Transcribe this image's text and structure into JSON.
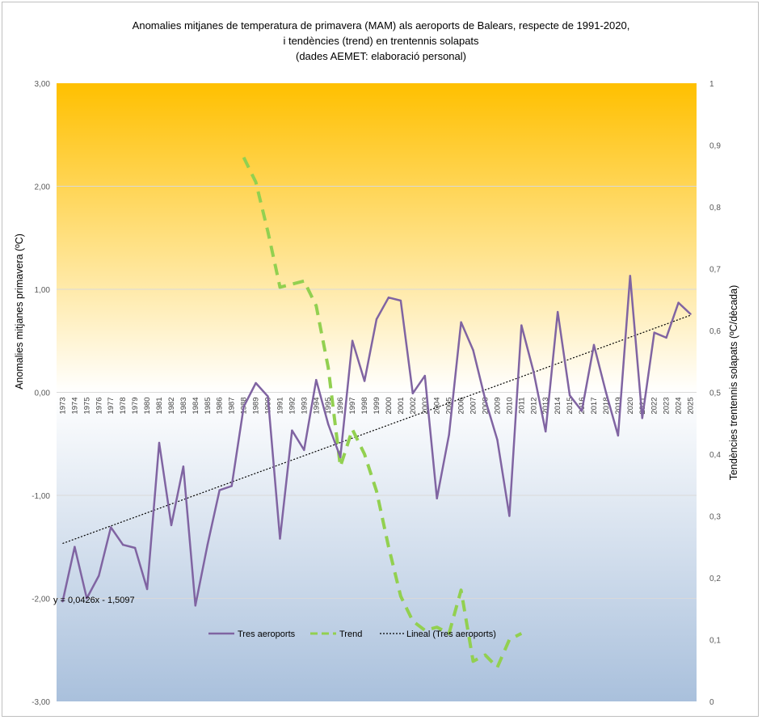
{
  "title": {
    "line1": "Anomalies mitjanes de temperatura de primavera (MAM) als aeroports de Balears, respecte de 1991-2020,",
    "line2": "i tendències (trend) en trentennis solapats",
    "line3": "(dades AEMET: elaboració personal)"
  },
  "colors": {
    "anomaly_line": "#8064a2",
    "trend_line": "#92d050",
    "linear_fit": "#000000",
    "bg_top": "#ffc000",
    "bg_mid": "#ffffff",
    "bg_bottom": "#a9c0dc"
  },
  "chart_data": {
    "type": "line",
    "title": "Anomalies mitjanes de temperatura de primavera (MAM) als aeroports de Balears, respecte de 1991-2020, i tendències (trend) en trentennis solapats (dades AEMET: elaboració personal)",
    "ylabel": "Anomalies mitjanes primavera (ºC)",
    "y2label": "Tendències trentennis solapats (ºC/dècada)",
    "ylim": [
      -3,
      3
    ],
    "y2lim": [
      0,
      1
    ],
    "yticks": [
      "3,00",
      "2,00",
      "1,00",
      "0,00",
      "-1,00",
      "-2,00",
      "-3,00"
    ],
    "y2ticks": [
      "1",
      "0,9",
      "0,8",
      "0,7",
      "0,6",
      "0,5",
      "0,4",
      "0,3",
      "0,2",
      "0,1",
      "0"
    ],
    "categories": [
      "1973",
      "1974",
      "1975",
      "1976",
      "1977",
      "1978",
      "1979",
      "1980",
      "1981",
      "1982",
      "1983",
      "1984",
      "1985",
      "1986",
      "1987",
      "1988",
      "1989",
      "1990",
      "1991",
      "1992",
      "1993",
      "1994",
      "1995",
      "1996",
      "1997",
      "1998",
      "1999",
      "2000",
      "2001",
      "2002",
      "2003",
      "2004",
      "2005",
      "2006",
      "2007",
      "2008",
      "2009",
      "2010",
      "2011",
      "2012",
      "2013",
      "2014",
      "2015",
      "2016",
      "2017",
      "2018",
      "2019",
      "2020",
      "2021",
      "2022",
      "2023",
      "2024",
      "2025"
    ],
    "series": [
      {
        "name": "Tres aeroports",
        "axis": "left",
        "values": [
          -2.03,
          -1.5,
          -2.0,
          -1.78,
          -1.31,
          -1.48,
          -1.51,
          -1.91,
          -0.49,
          -1.29,
          -0.72,
          -2.07,
          -1.48,
          -0.95,
          -0.91,
          -0.14,
          0.09,
          -0.04,
          -1.42,
          -0.37,
          -0.56,
          0.12,
          -0.31,
          -0.63,
          0.5,
          0.11,
          0.71,
          0.92,
          0.89,
          -0.01,
          0.16,
          -1.03,
          -0.41,
          0.68,
          0.41,
          -0.07,
          -0.46,
          -1.2,
          0.65,
          0.2,
          -0.38,
          0.78,
          -0.03,
          -0.18,
          0.46,
          0.0,
          -0.42,
          1.13,
          -0.25,
          0.58,
          0.53,
          0.87,
          0.76
        ]
      },
      {
        "name": "Trend",
        "axis": "right",
        "values": [
          null,
          null,
          null,
          null,
          null,
          null,
          null,
          null,
          null,
          null,
          null,
          null,
          null,
          null,
          null,
          0.88,
          0.84,
          0.76,
          0.67,
          0.675,
          0.68,
          0.64,
          0.54,
          0.38,
          0.44,
          0.4,
          0.34,
          0.25,
          0.17,
          0.13,
          0.115,
          0.12,
          0.11,
          0.18,
          0.065,
          0.075,
          0.055,
          0.1,
          0.11,
          null,
          null,
          null,
          null,
          null,
          null,
          null,
          null,
          null,
          null,
          null,
          null,
          null,
          null
        ]
      },
      {
        "name": "Lineal  (Tres aeroports)",
        "axis": "left",
        "fit": {
          "slope": 0.0426,
          "intercept": -1.5097
        }
      }
    ],
    "equation": "y = 0,0426x - 1,5097",
    "legend": "bottom-inside",
    "grid": true
  }
}
